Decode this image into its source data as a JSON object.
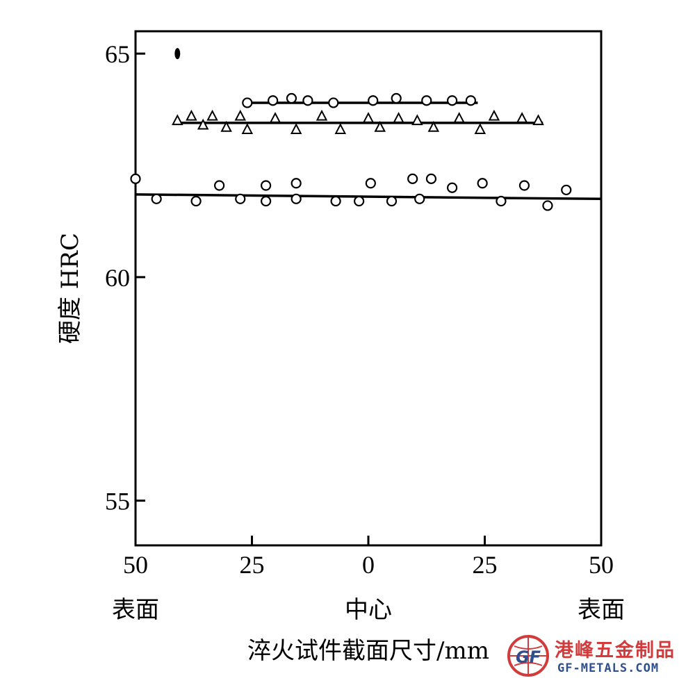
{
  "chart_data": {
    "type": "scatter",
    "title": "",
    "xlabel": "淬火试件截面尺寸/mm",
    "ylabel": "硬度 HRC",
    "xlim": [
      -50,
      50
    ],
    "ylim": [
      54,
      65.5
    ],
    "x_ticks": [
      {
        "value": -50,
        "label": "50"
      },
      {
        "value": -25,
        "label": "25"
      },
      {
        "value": 0,
        "label": "0"
      },
      {
        "value": 25,
        "label": "25"
      },
      {
        "value": 50,
        "label": "50"
      }
    ],
    "y_ticks": [
      {
        "value": 65,
        "label": "65"
      },
      {
        "value": 60,
        "label": "60"
      },
      {
        "value": 55,
        "label": "55"
      }
    ],
    "x_category_labels": [
      {
        "value": -50,
        "label": "表面"
      },
      {
        "value": 0,
        "label": "中心"
      },
      {
        "value": 50,
        "label": "表面"
      }
    ],
    "series": [
      {
        "marker": "circle",
        "fit_line": {
          "x": [
            -26,
            23.5
          ],
          "y": [
            63.9,
            63.9
          ]
        },
        "points": [
          [
            -26,
            63.9
          ],
          [
            -20.5,
            63.95
          ],
          [
            -16.5,
            64.0
          ],
          [
            -13,
            63.95
          ],
          [
            -7.5,
            63.9
          ],
          [
            1,
            63.95
          ],
          [
            6,
            64.0
          ],
          [
            12.5,
            63.95
          ],
          [
            18,
            63.95
          ],
          [
            22,
            63.95
          ]
        ]
      },
      {
        "marker": "triangle",
        "fit_line": {
          "x": [
            -41.5,
            37.5
          ],
          "y": [
            63.45,
            63.45
          ]
        },
        "points": [
          [
            -41,
            63.5
          ],
          [
            -38,
            63.6
          ],
          [
            -35.5,
            63.4
          ],
          [
            -33.5,
            63.6
          ],
          [
            -30.5,
            63.35
          ],
          [
            -27.5,
            63.6
          ],
          [
            -26,
            63.3
          ],
          [
            -20,
            63.55
          ],
          [
            -15.5,
            63.3
          ],
          [
            -10,
            63.6
          ],
          [
            -6,
            63.3
          ],
          [
            0,
            63.55
          ],
          [
            2.5,
            63.35
          ],
          [
            6.5,
            63.55
          ],
          [
            10.5,
            63.5
          ],
          [
            14,
            63.35
          ],
          [
            19.5,
            63.55
          ],
          [
            24,
            63.3
          ],
          [
            27,
            63.6
          ],
          [
            33,
            63.55
          ],
          [
            36.5,
            63.5
          ]
        ]
      },
      {
        "marker": "circle",
        "fit_line": {
          "x": [
            -50,
            50
          ],
          "y": [
            61.85,
            61.75
          ]
        },
        "points": [
          [
            -50,
            62.2
          ],
          [
            -45.5,
            61.75
          ],
          [
            -37,
            61.7
          ],
          [
            -32,
            62.05
          ],
          [
            -27.5,
            61.75
          ],
          [
            -22,
            62.05
          ],
          [
            -22,
            61.7
          ],
          [
            -15.5,
            62.1
          ],
          [
            -15.5,
            61.75
          ],
          [
            -7,
            61.7
          ],
          [
            -2,
            61.7
          ],
          [
            0.5,
            62.1
          ],
          [
            5,
            61.7
          ],
          [
            9.5,
            62.2
          ],
          [
            11,
            61.75
          ],
          [
            13.5,
            62.2
          ],
          [
            18,
            62.0
          ],
          [
            24.5,
            62.1
          ],
          [
            28.5,
            61.7
          ],
          [
            33.5,
            62.05
          ],
          [
            38.5,
            61.6
          ],
          [
            42.5,
            61.95
          ]
        ]
      }
    ],
    "annotations": [
      {
        "marker": "filled-dot",
        "x": -41,
        "y": 65.0
      }
    ],
    "grid": false,
    "legend": "none"
  },
  "watermark": {
    "cn": "港峰五金制品",
    "en": "GF-METALS.COM",
    "logo_text": "GF"
  },
  "colors": {
    "ink": "#000000",
    "watermark_red": "#d23b3b",
    "watermark_blue": "#2f4f8f"
  }
}
